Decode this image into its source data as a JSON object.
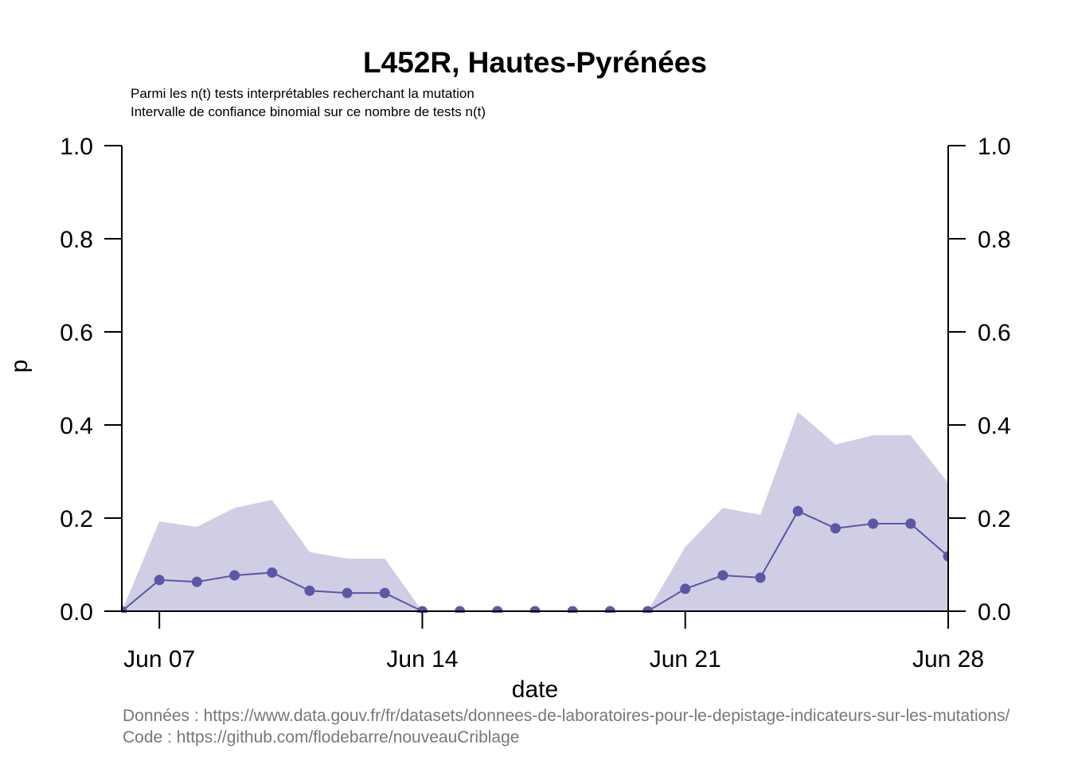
{
  "chart_data": {
    "type": "line",
    "title": "L452R, Hautes-Pyrénées",
    "subtitle_lines": [
      "Parmi les n(t) tests interprétables recherchant la mutation",
      "Intervalle de confiance binomial sur ce nombre de tests n(t)"
    ],
    "xlabel": "date",
    "ylabel": "p",
    "ylim": [
      0,
      1
    ],
    "yticks": [
      "0.0",
      "0.2",
      "0.4",
      "0.6",
      "0.8",
      "1.0"
    ],
    "ytick_values": [
      0,
      0.2,
      0.4,
      0.6,
      0.8,
      1.0
    ],
    "xlim": [
      "2021-06-06",
      "2021-06-28"
    ],
    "xticks": [
      "Jun 07",
      "Jun 14",
      "Jun 21",
      "Jun 28"
    ],
    "xtick_dates": [
      "2021-06-07",
      "2021-06-14",
      "2021-06-21",
      "2021-06-28"
    ],
    "x": [
      "2021-06-06",
      "2021-06-07",
      "2021-06-08",
      "2021-06-09",
      "2021-06-10",
      "2021-06-11",
      "2021-06-12",
      "2021-06-13",
      "2021-06-14",
      "2021-06-15",
      "2021-06-16",
      "2021-06-17",
      "2021-06-18",
      "2021-06-19",
      "2021-06-20",
      "2021-06-21",
      "2021-06-22",
      "2021-06-23",
      "2021-06-24",
      "2021-06-25",
      "2021-06-26",
      "2021-06-27",
      "2021-06-28"
    ],
    "series": [
      {
        "values": [
          0.0,
          0.067,
          0.063,
          0.077,
          0.083,
          0.044,
          0.039,
          0.039,
          0.0,
          0.0,
          0.0,
          0.0,
          0.0,
          0.0,
          0.0,
          0.048,
          0.077,
          0.072,
          0.215,
          0.178,
          0.188,
          0.188,
          0.118
        ],
        "ci_low": [
          0,
          0,
          0,
          0,
          0,
          0,
          0,
          0,
          0,
          0,
          0,
          0,
          0,
          0,
          0,
          0,
          0,
          0,
          0,
          0,
          0,
          0,
          0
        ],
        "ci_high": [
          0.0,
          0.193,
          0.181,
          0.222,
          0.239,
          0.127,
          0.113,
          0.113,
          0.0,
          0.0,
          0.0,
          0.0,
          0.0,
          0.0,
          0.0,
          0.138,
          0.222,
          0.207,
          0.428,
          0.358,
          0.378,
          0.378,
          0.275
        ]
      }
    ],
    "colors": {
      "line": "#5E55A5",
      "ribbon": "#D0CEE5",
      "axis": "#000000",
      "source_text": "#777777"
    },
    "grid": false,
    "secondary_y_axis": true
  },
  "source": {
    "data_line": "Données : https://www.data.gouv.fr/fr/datasets/donnees-de-laboratoires-pour-le-depistage-indicateurs-sur-les-mutations/",
    "code_line": "Code : https://github.com/flodebarre/nouveauCriblage"
  }
}
